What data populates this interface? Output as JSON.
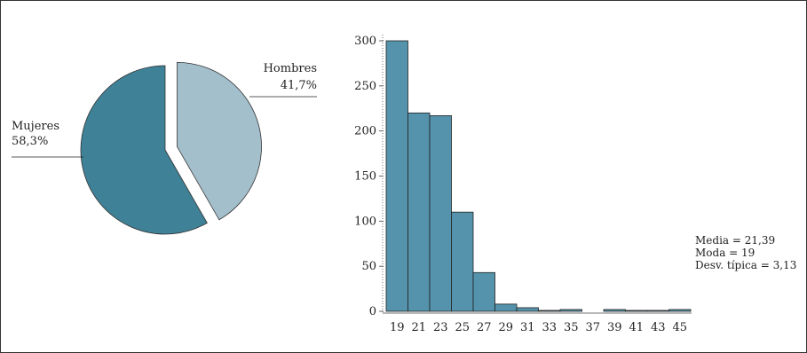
{
  "chart_data": [
    {
      "type": "pie",
      "slices": [
        {
          "label": "Mujeres",
          "value_label": "58,3%",
          "value": 58.3,
          "color": "#3f8196",
          "exploded": false
        },
        {
          "label": "Hombres",
          "value_label": "41,7%",
          "value": 41.7,
          "color": "#a3bfcc",
          "exploded": true
        }
      ]
    },
    {
      "type": "bar",
      "categories": [
        "19",
        "21",
        "23",
        "25",
        "27",
        "29",
        "31",
        "33",
        "35",
        "37",
        "39",
        "41",
        "43",
        "45"
      ],
      "values": [
        300,
        220,
        217,
        110,
        43,
        8,
        4,
        1,
        2,
        0,
        2,
        1,
        1,
        2
      ],
      "ylim": [
        0,
        310
      ],
      "yticks": [
        0,
        50,
        100,
        150,
        200,
        250,
        300
      ],
      "bar_color": "#5493ab",
      "stats": [
        "Media = 21,39",
        "Moda = 19",
        "Desv. típica = 3,13"
      ]
    }
  ]
}
